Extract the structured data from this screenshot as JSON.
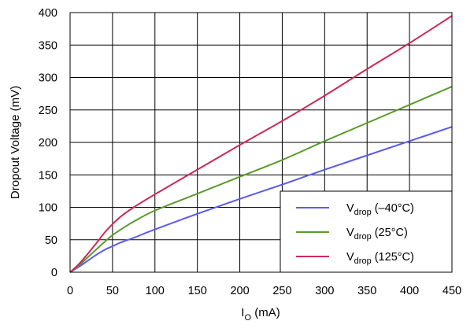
{
  "chart_data": {
    "type": "line",
    "title": "",
    "xlabel": {
      "main": "I",
      "sub": "O",
      "suffix": " (mA)"
    },
    "ylabel": "Dropout Voltage (mV)",
    "xlim": [
      0,
      450
    ],
    "ylim": [
      0,
      400
    ],
    "x_ticks": [
      0,
      50,
      100,
      150,
      200,
      250,
      300,
      350,
      400,
      450
    ],
    "y_ticks": [
      0,
      50,
      100,
      150,
      200,
      250,
      300,
      350,
      400
    ],
    "grid": true,
    "legend_position": "bottom-right",
    "series": [
      {
        "name": {
          "main": "V",
          "sub": "drop",
          "suffix": " (–40°C)"
        },
        "color": "#5b5bf0",
        "points": [
          [
            0,
            0
          ],
          [
            10,
            8
          ],
          [
            20,
            17
          ],
          [
            30,
            26
          ],
          [
            40,
            34
          ],
          [
            50,
            40
          ],
          [
            60,
            46
          ],
          [
            75,
            53
          ],
          [
            100,
            66
          ],
          [
            150,
            90
          ],
          [
            200,
            113
          ],
          [
            250,
            135
          ],
          [
            300,
            158
          ],
          [
            350,
            180
          ],
          [
            400,
            202
          ],
          [
            450,
            224
          ]
        ]
      },
      {
        "name": {
          "main": "V",
          "sub": "drop",
          "suffix": " (25°C)"
        },
        "color": "#5a9a2c",
        "points": [
          [
            0,
            0
          ],
          [
            10,
            10
          ],
          [
            20,
            22
          ],
          [
            30,
            34
          ],
          [
            40,
            46
          ],
          [
            50,
            57
          ],
          [
            60,
            66
          ],
          [
            75,
            78
          ],
          [
            100,
            95
          ],
          [
            150,
            121
          ],
          [
            200,
            147
          ],
          [
            250,
            173
          ],
          [
            300,
            202
          ],
          [
            350,
            230
          ],
          [
            400,
            258
          ],
          [
            450,
            286
          ]
        ]
      },
      {
        "name": {
          "main": "V",
          "sub": "drop",
          "suffix": " (125°C)"
        },
        "color": "#cc2a57",
        "points": [
          [
            0,
            0
          ],
          [
            10,
            12
          ],
          [
            20,
            27
          ],
          [
            30,
            43
          ],
          [
            40,
            60
          ],
          [
            50,
            74
          ],
          [
            60,
            86
          ],
          [
            75,
            100
          ],
          [
            100,
            120
          ],
          [
            150,
            158
          ],
          [
            200,
            196
          ],
          [
            250,
            233
          ],
          [
            300,
            272
          ],
          [
            350,
            313
          ],
          [
            400,
            353
          ],
          [
            450,
            395
          ]
        ]
      }
    ]
  }
}
